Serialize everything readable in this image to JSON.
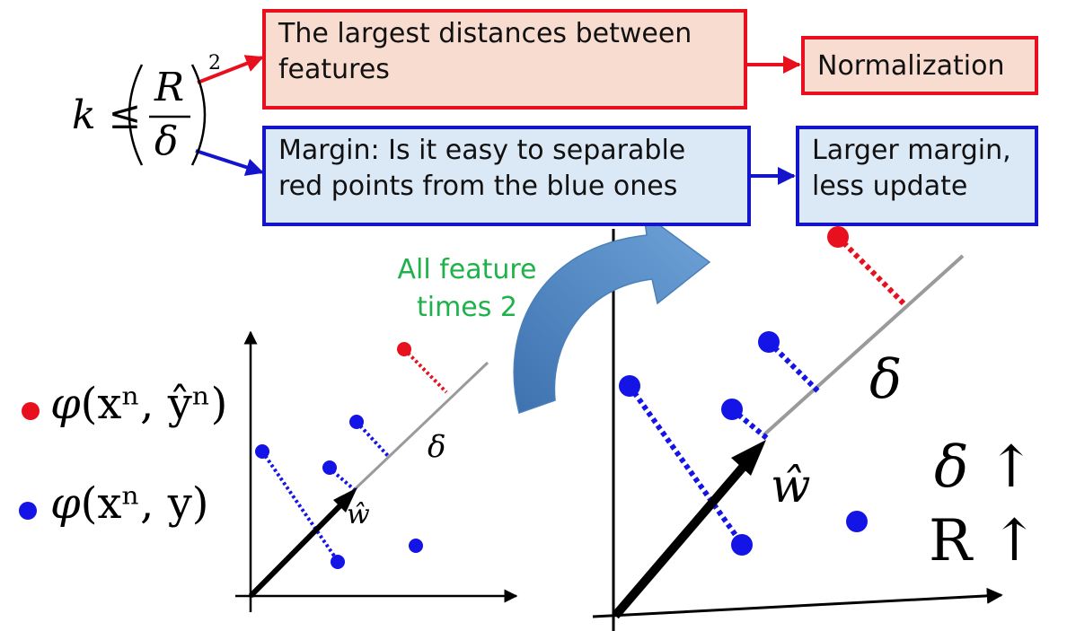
{
  "formula": {
    "lhs": "k ≤",
    "numerator": "R",
    "denominator": "δ",
    "exponent": "2"
  },
  "boxes": {
    "largest_distance": {
      "line1": "The largest distances between",
      "line2": "features",
      "color": "#e8101e"
    },
    "normalization": {
      "line1": "Normalization",
      "color": "#e8101e"
    },
    "margin": {
      "line1": "Margin: Is it easy to separable",
      "line2": "red points from the blue ones",
      "color": "#1414cc"
    },
    "larger_margin": {
      "line1": "Larger margin,",
      "line2": "less update",
      "color": "#1414cc"
    }
  },
  "annotation": {
    "line1": "All feature",
    "line2": "times 2",
    "color": "#1fb14a"
  },
  "legend": {
    "red_label_phi": "φ",
    "red_label_args": "(xⁿ, ŷⁿ)",
    "blue_label_phi": "φ",
    "blue_label_args": "(xⁿ, y)",
    "red_color": "#e8101e",
    "blue_color": "#1414e6"
  },
  "left_plot": {
    "w_label": "ŵ",
    "delta_label": "δ"
  },
  "right_plot": {
    "w_label": "ŵ",
    "delta_label": "δ",
    "delta_trend": "δ ↑",
    "r_trend": "R ↑"
  }
}
